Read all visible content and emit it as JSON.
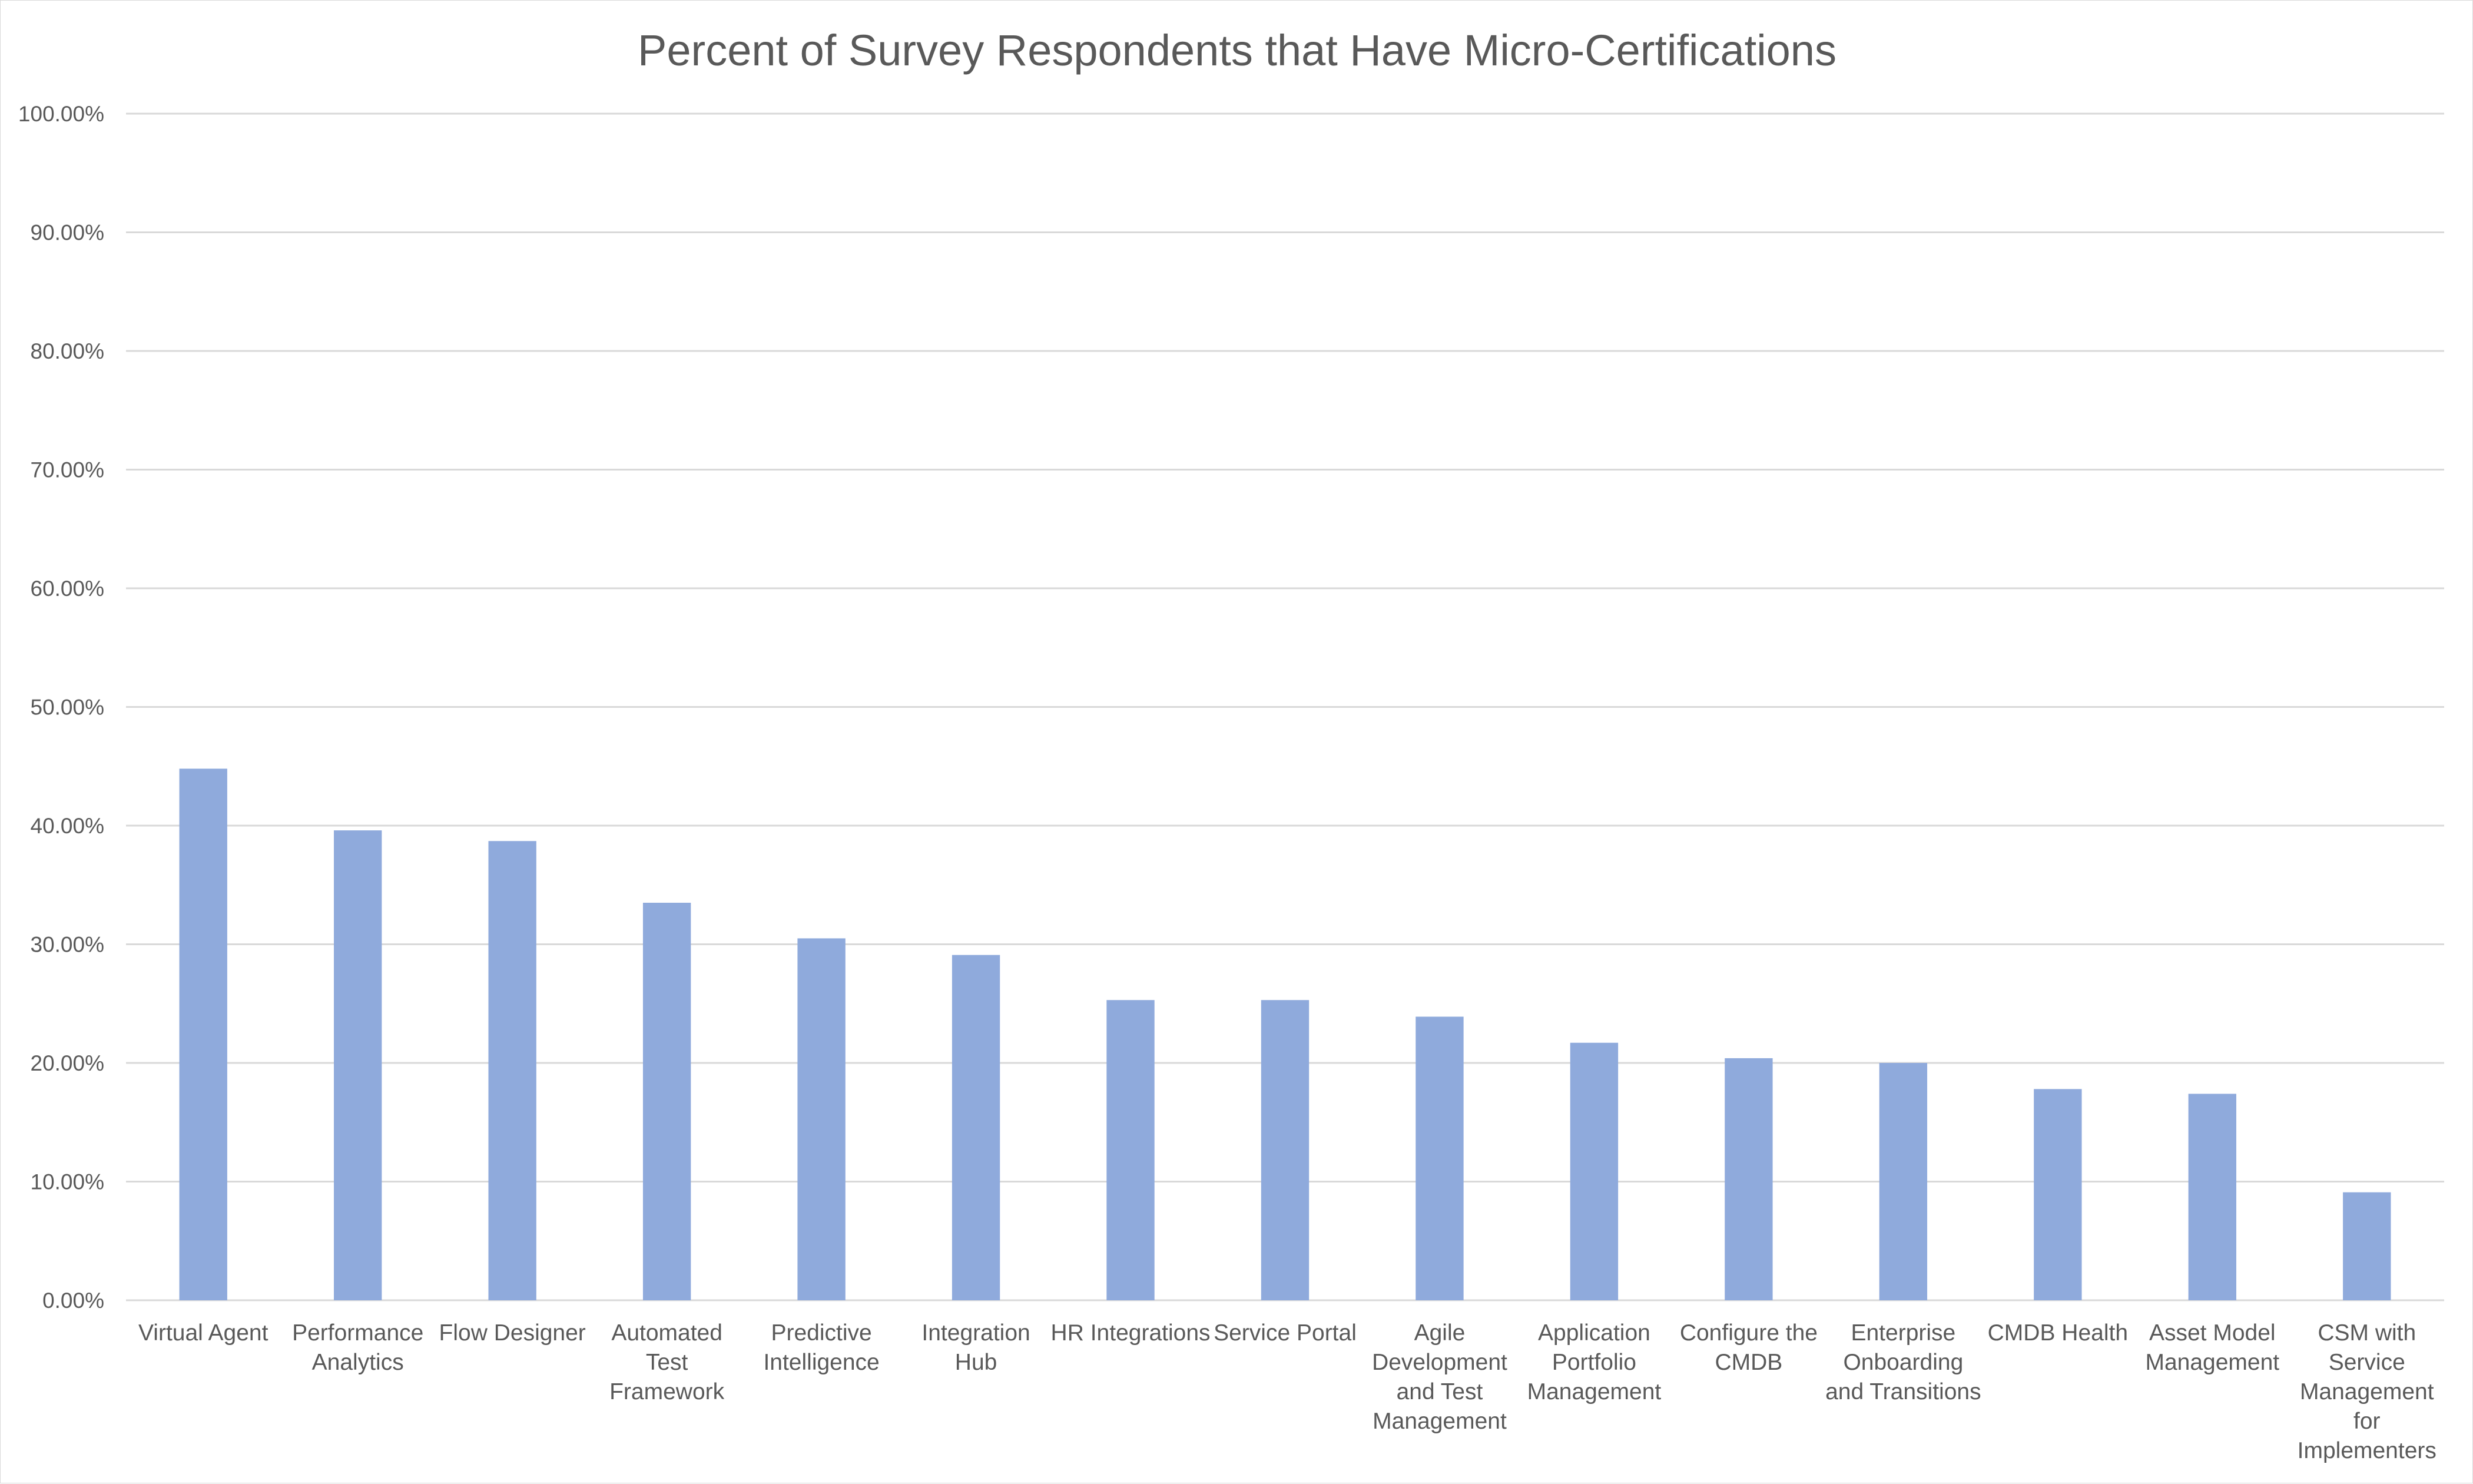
{
  "chart_data": {
    "type": "bar",
    "title": "Percent of Survey Respondents that Have Micro-Certifications",
    "xlabel": "",
    "ylabel": "",
    "ylim": [
      0,
      100
    ],
    "ytick_step": 10,
    "ytick_labels": [
      "0.00%",
      "10.00%",
      "20.00%",
      "30.00%",
      "40.00%",
      "50.00%",
      "60.00%",
      "70.00%",
      "80.00%",
      "90.00%",
      "100.00%"
    ],
    "grid": true,
    "legend": "none",
    "bar_color": "#8faadc",
    "categories": [
      [
        "Virtual Agent"
      ],
      [
        "Performance",
        "Analytics"
      ],
      [
        "Flow Designer"
      ],
      [
        "Automated",
        "Test",
        "Framework"
      ],
      [
        "Predictive",
        "Intelligence"
      ],
      [
        "Integration",
        "Hub"
      ],
      [
        "HR Integrations"
      ],
      [
        "Service Portal"
      ],
      [
        "Agile",
        "Development",
        "and Test",
        "Management"
      ],
      [
        "Application",
        "Portfolio",
        "Management"
      ],
      [
        "Configure the",
        "CMDB"
      ],
      [
        "Enterprise",
        "Onboarding",
        "and Transitions"
      ],
      [
        "CMDB Health"
      ],
      [
        "Asset Model",
        "Management"
      ],
      [
        "CSM with",
        "Service",
        "Management",
        "for",
        "Implementers"
      ]
    ],
    "values": [
      44.8,
      39.6,
      38.7,
      33.5,
      30.5,
      29.1,
      25.3,
      25.3,
      23.9,
      21.7,
      20.4,
      20.0,
      17.8,
      17.4,
      9.1
    ]
  }
}
